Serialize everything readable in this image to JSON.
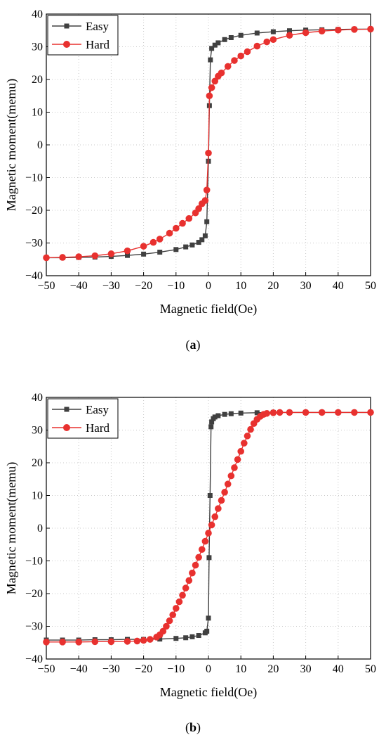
{
  "chart_data": [
    {
      "type": "scatter",
      "panel_label": "a",
      "xlabel": "Magnetic field(Oe)",
      "ylabel": "Magnetic moment(memu)",
      "xlim": [
        -50,
        50
      ],
      "ylim": [
        -40,
        40
      ],
      "xticks": [
        -50,
        -40,
        -30,
        -20,
        -10,
        0,
        10,
        20,
        30,
        40,
        50
      ],
      "yticks": [
        -40,
        -30,
        -20,
        -10,
        0,
        10,
        20,
        30,
        40
      ],
      "grid": true,
      "legend": "top-left",
      "series": [
        {
          "name": "Easy",
          "color": "#404040",
          "marker": "square",
          "points": [
            [
              -50,
              -34.5
            ],
            [
              -45,
              -34.5
            ],
            [
              -40,
              -34.4
            ],
            [
              -35,
              -34.3
            ],
            [
              -30,
              -34.1
            ],
            [
              -25,
              -33.8
            ],
            [
              -20,
              -33.4
            ],
            [
              -15,
              -32.8
            ],
            [
              -10,
              -32
            ],
            [
              -7,
              -31.2
            ],
            [
              -5,
              -30.6
            ],
            [
              -3,
              -29.8
            ],
            [
              -2,
              -29
            ],
            [
              -1,
              -27.8
            ],
            [
              -0.5,
              -23.5
            ],
            [
              0,
              -5
            ],
            [
              0.3,
              12
            ],
            [
              0.6,
              26
            ],
            [
              1,
              29.5
            ],
            [
              2,
              30.5
            ],
            [
              3,
              31.2
            ],
            [
              5,
              32.2
            ],
            [
              7,
              32.8
            ],
            [
              10,
              33.5
            ],
            [
              15,
              34.2
            ],
            [
              20,
              34.6
            ],
            [
              25,
              34.9
            ],
            [
              30,
              35.1
            ],
            [
              35,
              35.2
            ],
            [
              40,
              35.3
            ],
            [
              45,
              35.4
            ],
            [
              50,
              35.4
            ]
          ]
        },
        {
          "name": "Hard",
          "color": "#e8312f",
          "marker": "circle",
          "points": [
            [
              -50,
              -34.5
            ],
            [
              -45,
              -34.4
            ],
            [
              -40,
              -34.2
            ],
            [
              -35,
              -33.9
            ],
            [
              -30,
              -33.3
            ],
            [
              -25,
              -32.4
            ],
            [
              -20,
              -31
            ],
            [
              -17,
              -29.8
            ],
            [
              -15,
              -28.8
            ],
            [
              -12,
              -27
            ],
            [
              -10,
              -25.5
            ],
            [
              -8,
              -24
            ],
            [
              -6,
              -22.5
            ],
            [
              -4,
              -20.8
            ],
            [
              -3,
              -19.5
            ],
            [
              -2,
              -18
            ],
            [
              -1,
              -17
            ],
            [
              -0.5,
              -13.8
            ],
            [
              0,
              -2.5
            ],
            [
              0.3,
              15
            ],
            [
              1,
              17.5
            ],
            [
              2,
              19.5
            ],
            [
              3,
              21
            ],
            [
              4,
              22
            ],
            [
              6,
              24
            ],
            [
              8,
              25.8
            ],
            [
              10,
              27.2
            ],
            [
              12,
              28.5
            ],
            [
              15,
              30.2
            ],
            [
              18,
              31.5
            ],
            [
              20,
              32.2
            ],
            [
              25,
              33.5
            ],
            [
              30,
              34.3
            ],
            [
              35,
              34.8
            ],
            [
              40,
              35.1
            ],
            [
              45,
              35.3
            ],
            [
              50,
              35.4
            ]
          ]
        }
      ]
    },
    {
      "type": "scatter",
      "panel_label": "b",
      "xlabel": "Magnetic field(Oe)",
      "ylabel": "Magnetic moment(memu)",
      "xlim": [
        -50,
        50
      ],
      "ylim": [
        -40,
        40
      ],
      "xticks": [
        -50,
        -40,
        -30,
        -20,
        -10,
        0,
        10,
        20,
        30,
        40,
        50
      ],
      "yticks": [
        -40,
        -30,
        -20,
        -10,
        0,
        10,
        20,
        30,
        40
      ],
      "grid": true,
      "legend": "top-left",
      "series": [
        {
          "name": "Easy",
          "color": "#404040",
          "marker": "square",
          "points": [
            [
              -50,
              -34.2
            ],
            [
              -45,
              -34.2
            ],
            [
              -40,
              -34.2
            ],
            [
              -35,
              -34.1
            ],
            [
              -30,
              -34.1
            ],
            [
              -25,
              -34
            ],
            [
              -20,
              -34
            ],
            [
              -15,
              -33.9
            ],
            [
              -10,
              -33.7
            ],
            [
              -7,
              -33.5
            ],
            [
              -5,
              -33.2
            ],
            [
              -3,
              -32.8
            ],
            [
              -1,
              -32
            ],
            [
              -0.5,
              -31.5
            ],
            [
              0,
              -27.5
            ],
            [
              0.2,
              -9
            ],
            [
              0.5,
              10
            ],
            [
              0.8,
              31
            ],
            [
              1,
              32.5
            ],
            [
              1.5,
              33.5
            ],
            [
              2,
              34
            ],
            [
              3,
              34.4
            ],
            [
              5,
              34.8
            ],
            [
              7,
              35
            ],
            [
              10,
              35.2
            ],
            [
              15,
              35.3
            ],
            [
              20,
              35.4
            ],
            [
              25,
              35.4
            ],
            [
              30,
              35.4
            ],
            [
              35,
              35.4
            ],
            [
              40,
              35.4
            ],
            [
              45,
              35.4
            ],
            [
              50,
              35.4
            ]
          ]
        },
        {
          "name": "Hard",
          "color": "#e8312f",
          "marker": "circle",
          "points": [
            [
              -50,
              -34.8
            ],
            [
              -45,
              -34.8
            ],
            [
              -40,
              -34.8
            ],
            [
              -35,
              -34.7
            ],
            [
              -30,
              -34.7
            ],
            [
              -25,
              -34.6
            ],
            [
              -22,
              -34.5
            ],
            [
              -20,
              -34.3
            ],
            [
              -18,
              -34
            ],
            [
              -16,
              -33.3
            ],
            [
              -15,
              -32.6
            ],
            [
              -14,
              -31.5
            ],
            [
              -13,
              -30
            ],
            [
              -12,
              -28.3
            ],
            [
              -11,
              -26.5
            ],
            [
              -10,
              -24.5
            ],
            [
              -9,
              -22.5
            ],
            [
              -8,
              -20.5
            ],
            [
              -7,
              -18.3
            ],
            [
              -6,
              -16
            ],
            [
              -5,
              -13.7
            ],
            [
              -4,
              -11.3
            ],
            [
              -3,
              -8.9
            ],
            [
              -2,
              -6.5
            ],
            [
              -1,
              -4
            ],
            [
              0,
              -1.5
            ],
            [
              1,
              1
            ],
            [
              2,
              3.5
            ],
            [
              3,
              6
            ],
            [
              4,
              8.5
            ],
            [
              5,
              11
            ],
            [
              6,
              13.5
            ],
            [
              7,
              16
            ],
            [
              8,
              18.5
            ],
            [
              9,
              21
            ],
            [
              10,
              23.5
            ],
            [
              11,
              26
            ],
            [
              12,
              28.2
            ],
            [
              13,
              30.2
            ],
            [
              14,
              32
            ],
            [
              15,
              33.3
            ],
            [
              16,
              34.2
            ],
            [
              17,
              34.8
            ],
            [
              18,
              35.1
            ],
            [
              20,
              35.3
            ],
            [
              22,
              35.4
            ],
            [
              25,
              35.4
            ],
            [
              30,
              35.4
            ],
            [
              35,
              35.4
            ],
            [
              40,
              35.4
            ],
            [
              45,
              35.4
            ],
            [
              50,
              35.4
            ]
          ]
        }
      ]
    }
  ]
}
